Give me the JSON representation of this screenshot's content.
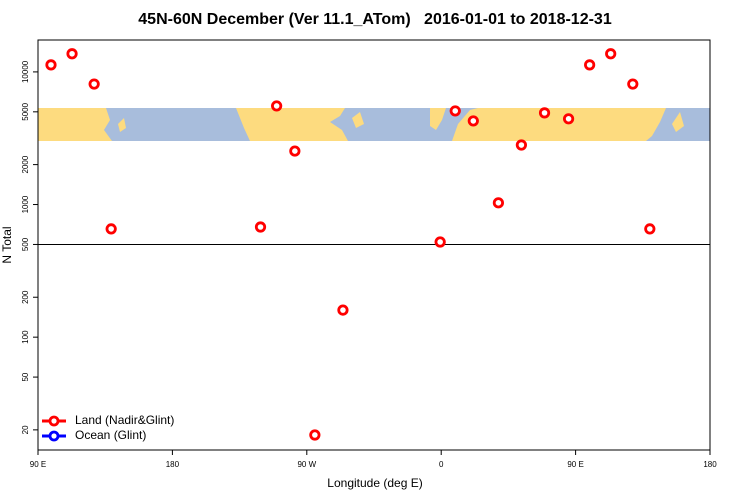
{
  "chart_data": {
    "type": "scatter",
    "title": "45N-60N December (Ver 11.1_ATom)   2016-01-01 to 2018-12-31",
    "x_label": "Longitude (deg E)",
    "y_label": "N Total",
    "y_log": true,
    "xlim": [
      90,
      540
    ],
    "xticks": [
      {
        "value": 90,
        "label": "90 E"
      },
      180,
      {
        "value": 270,
        "label": "90 W"
      },
      {
        "value": 360,
        "label": "0"
      },
      {
        "value": 450,
        "label": "90 E"
      },
      {
        "value": 540,
        "label": "180"
      }
    ],
    "ylim": [
      14.1,
      17400
    ],
    "yticks": [
      20,
      50,
      100,
      200,
      500,
      1000,
      2000,
      5000,
      10000
    ],
    "reference_line": 500,
    "legend": "bottom-left",
    "series": [
      {
        "name": "Land (Nadir&Glint)",
        "color": "#ff0000",
        "x": [
          98.7,
          112.8,
          127.6,
          139,
          239,
          249.8,
          262,
          275.4,
          294.2,
          359.3,
          369.4,
          381.5,
          398.3,
          413.7,
          429.2,
          445.3,
          459.4,
          473.5,
          488.3,
          499.7
        ],
        "values": [
          11300,
          13700,
          8100,
          655,
          677,
          5540,
          2530,
          18.3,
          160,
          522,
          5080,
          4270,
          1030,
          2810,
          4910,
          4430,
          11300,
          13700,
          8100,
          655
        ]
      },
      {
        "name": "Ocean (Glint)",
        "color": "#0000ff",
        "x": [],
        "values": []
      }
    ]
  }
}
